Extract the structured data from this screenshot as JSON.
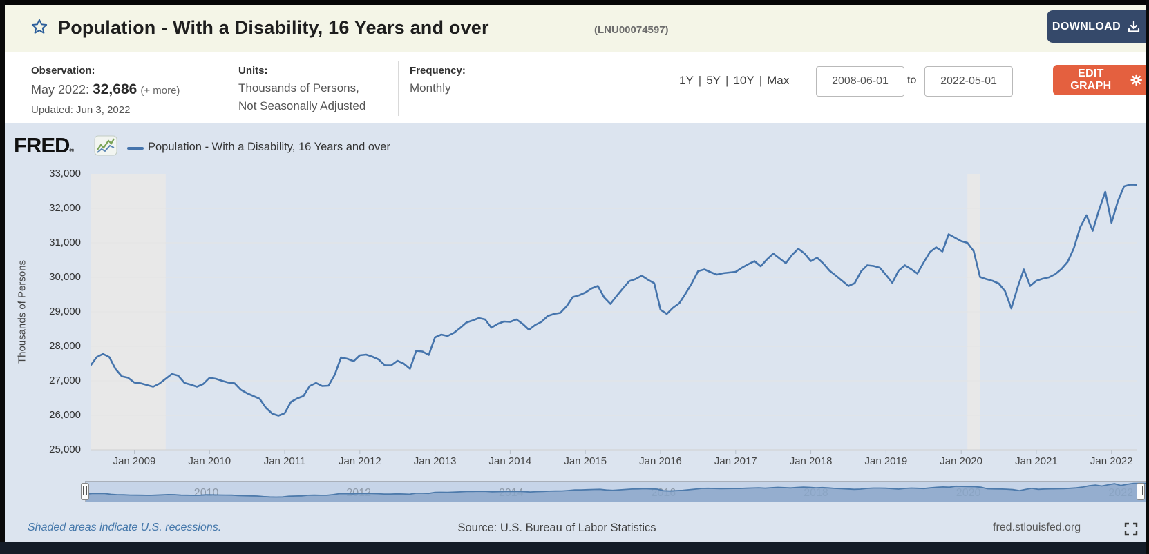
{
  "header": {
    "title": "Population - With a Disability, 16 Years and over",
    "series_id": "(LNU00074597)",
    "download_label": "DOWNLOAD"
  },
  "info": {
    "observation_label": "Observation:",
    "observation_date": "May 2022:",
    "observation_value": "32,686",
    "more_label": "(+ more)",
    "updated": "Updated: Jun 3, 2022",
    "units_label": "Units:",
    "units_value_line1": "Thousands of Persons,",
    "units_value_line2": "Not Seasonally Adjusted",
    "frequency_label": "Frequency:",
    "frequency_value": "Monthly"
  },
  "range": {
    "presets": [
      "1Y",
      "5Y",
      "10Y",
      "Max"
    ],
    "separator": "|",
    "start_date": "2008-06-01",
    "to_label": "to",
    "end_date": "2022-05-01",
    "edit_graph_label": "EDIT GRAPH"
  },
  "chart_header": {
    "brand": "FRED",
    "reg": "®",
    "legend_label": "Population - With a Disability, 16 Years and over"
  },
  "footer": {
    "recession_note": "Shaded areas indicate U.S. recessions.",
    "source": "Source: U.S. Bureau of Labor Statistics",
    "site": "fred.stlouisfed.org"
  },
  "chart_data": {
    "type": "line",
    "title": "Population - With a Disability, 16 Years and over",
    "ylabel": "Thousands of Persons",
    "ylim": [
      25000,
      33000
    ],
    "yticks": [
      25000,
      26000,
      27000,
      28000,
      29000,
      30000,
      31000,
      32000,
      33000
    ],
    "x_start": "2008-06",
    "x_end": "2022-05",
    "frequency": "monthly",
    "x_tick_labels": [
      "Jan 2009",
      "Jan 2010",
      "Jan 2011",
      "Jan 2012",
      "Jan 2013",
      "Jan 2014",
      "Jan 2015",
      "Jan 2016",
      "Jan 2017",
      "Jan 2018",
      "Jan 2019",
      "Jan 2020",
      "Jan 2021",
      "Jan 2022"
    ],
    "grid": "horizontal",
    "legend_position": "top-left",
    "recession_color": "#e8e8e8",
    "recessions": [
      {
        "start": "2008-06",
        "end": "2009-06"
      },
      {
        "start": "2020-02",
        "end": "2020-04"
      }
    ],
    "series": [
      {
        "name": "Population - With a Disability, 16 Years and over",
        "color": "#4574ac",
        "values": [
          27440,
          27690,
          27780,
          27690,
          27340,
          27130,
          27090,
          26950,
          26930,
          26880,
          26830,
          26920,
          27060,
          27200,
          27150,
          26940,
          26890,
          26830,
          26910,
          27090,
          27060,
          27000,
          26950,
          26930,
          26740,
          26640,
          26560,
          26480,
          26220,
          26050,
          25990,
          26060,
          26390,
          26490,
          26560,
          26850,
          26940,
          26850,
          26860,
          27180,
          27680,
          27640,
          27570,
          27740,
          27760,
          27700,
          27620,
          27450,
          27450,
          27580,
          27500,
          27350,
          27870,
          27850,
          27750,
          28260,
          28340,
          28300,
          28390,
          28530,
          28690,
          28750,
          28820,
          28780,
          28540,
          28650,
          28720,
          28710,
          28780,
          28650,
          28480,
          28620,
          28710,
          28880,
          28940,
          28970,
          29160,
          29430,
          29480,
          29560,
          29680,
          29750,
          29420,
          29230,
          29460,
          29680,
          29890,
          29950,
          30050,
          29930,
          29830,
          29060,
          28940,
          29120,
          29250,
          29530,
          29830,
          30180,
          30230,
          30150,
          30080,
          30120,
          30140,
          30160,
          30280,
          30380,
          30470,
          30320,
          30520,
          30690,
          30550,
          30410,
          30650,
          30830,
          30690,
          30470,
          30570,
          30400,
          30190,
          30050,
          29900,
          29750,
          29830,
          30170,
          30350,
          30330,
          30280,
          30070,
          29840,
          30190,
          30350,
          30240,
          30110,
          30430,
          30730,
          30870,
          30750,
          31250,
          31150,
          31050,
          31000,
          30760,
          30010,
          29950,
          29900,
          29820,
          29600,
          29100,
          29700,
          30230,
          29750,
          29900,
          29960,
          30000,
          30090,
          30240,
          30450,
          30850,
          31450,
          31800,
          31350,
          31950,
          32480,
          31580,
          32200,
          32640,
          32690,
          32686
        ]
      }
    ],
    "slider_year_labels": [
      "2010",
      "2012",
      "2014",
      "2016",
      "2018",
      "2020",
      "2022"
    ]
  }
}
